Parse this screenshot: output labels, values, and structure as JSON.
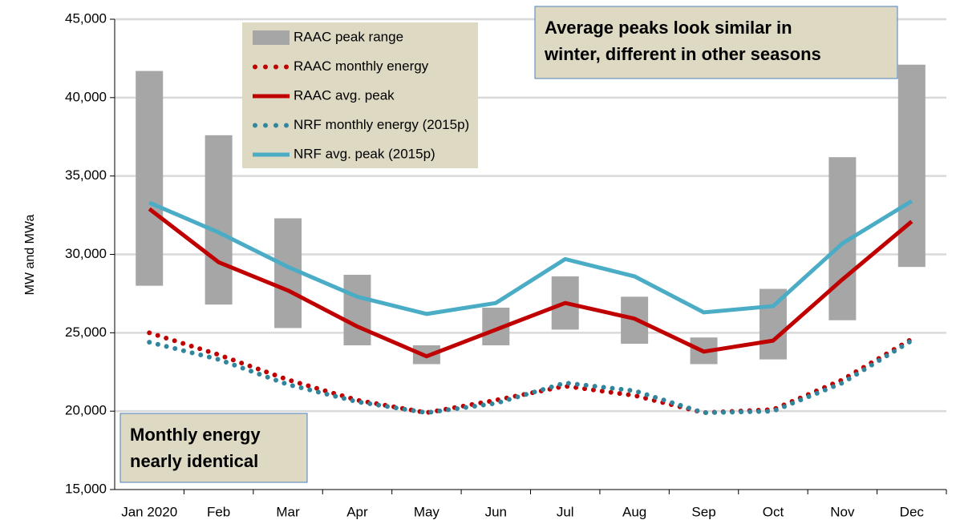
{
  "chart_data": {
    "type": "line",
    "y_label": "MW and MWa",
    "categories": [
      "Jan 2020",
      "Feb",
      "Mar",
      "Apr",
      "May",
      "Jun",
      "Jul",
      "Aug",
      "Sep",
      "Oct",
      "Nov",
      "Dec"
    ],
    "ylim": [
      15000,
      45000
    ],
    "yticks": [
      {
        "value": 15000,
        "label": "15,000"
      },
      {
        "value": 20000,
        "label": "20,000"
      },
      {
        "value": 25000,
        "label": "25,000"
      },
      {
        "value": 30000,
        "label": "30,000"
      },
      {
        "value": 35000,
        "label": "35,000"
      },
      {
        "value": 40000,
        "label": "40,000"
      },
      {
        "value": 45000,
        "label": "45,000"
      }
    ],
    "grid": true,
    "series": [
      {
        "name": "RAAC peak range",
        "style": "range",
        "color": "#a6a6a6",
        "low": [
          28000,
          26800,
          25300,
          24200,
          23000,
          24200,
          25200,
          24300,
          23000,
          23300,
          25800,
          29200
        ],
        "high": [
          41700,
          37600,
          32300,
          28700,
          24200,
          26600,
          28600,
          27300,
          24700,
          27800,
          36200,
          42100
        ]
      },
      {
        "name": "RAAC monthly energy",
        "style": "dotted",
        "color": "#c00000",
        "values": [
          25000,
          23600,
          22000,
          20700,
          19900,
          20700,
          21600,
          21000,
          19900,
          20100,
          22000,
          24600
        ]
      },
      {
        "name": "RAAC avg. peak",
        "style": "solid",
        "color": "#c00000",
        "values": [
          32900,
          29500,
          27700,
          25400,
          23500,
          25200,
          26900,
          25900,
          23800,
          24500,
          28400,
          32100
        ]
      },
      {
        "name": "NRF monthly energy (2015p)",
        "style": "dotted",
        "color": "#31859c",
        "values": [
          24400,
          23300,
          21700,
          20600,
          19900,
          20500,
          21800,
          21300,
          19900,
          20000,
          21800,
          24500
        ]
      },
      {
        "name": "NRF avg. peak (2015p)",
        "style": "solid",
        "color": "#4bacc6",
        "values": [
          33300,
          31400,
          29200,
          27300,
          26200,
          26900,
          29700,
          28600,
          26300,
          26700,
          30700,
          33400
        ]
      }
    ],
    "annotations": [
      {
        "lines": [
          "Average peaks look similar in",
          "winter, different in other seasons"
        ]
      },
      {
        "lines": [
          "Monthly energy",
          "nearly identical"
        ]
      }
    ]
  }
}
